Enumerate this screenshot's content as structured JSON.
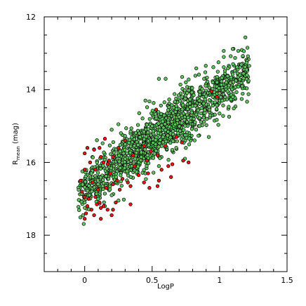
{
  "chart_data": {
    "type": "scatter",
    "title": "",
    "xlabel": "LogP",
    "ylabel": {
      "main": "R",
      "subscript": "mean",
      "unit": " (mag)"
    },
    "xlim": [
      -0.3,
      1.5
    ],
    "ylim": [
      19.0,
      12.0
    ],
    "y_inverted": true,
    "x_major_ticks": [
      0,
      0.5,
      1,
      1.5
    ],
    "x_tick_labels": [
      "0",
      "0.5",
      "1",
      "1.5"
    ],
    "y_major_ticks": [
      12,
      14,
      16,
      18
    ],
    "y_tick_labels": [
      "12",
      "14",
      "16",
      "18"
    ],
    "grid": false,
    "legend": "none",
    "colors": {
      "green": "#5fc45f",
      "red": "#ee1111",
      "outline": "#000000"
    },
    "series": [
      {
        "marker": "circle",
        "color": "green",
        "trend": {
          "slope": -2.67,
          "intercept": 16.7,
          "scatter_sd": 0.35,
          "x_range": [
            -0.05,
            1.22
          ],
          "n_points": 1400
        },
        "values": [
          {
            "x": 1.1,
            "y": 13.3
          },
          {
            "x": 1.2,
            "y": 13.45
          },
          {
            "x": 1.15,
            "y": 13.6
          },
          {
            "x": 0.55,
            "y": 13.7
          },
          {
            "x": 0.6,
            "y": 13.7
          },
          {
            "x": 0.75,
            "y": 13.8
          },
          {
            "x": 0.95,
            "y": 13.8
          },
          {
            "x": 1.05,
            "y": 13.8
          },
          {
            "x": 0.45,
            "y": 14.3
          },
          {
            "x": 0.2,
            "y": 15.1
          },
          {
            "x": 0.25,
            "y": 14.95
          },
          {
            "x": 0.5,
            "y": 15.0
          },
          {
            "x": 0.85,
            "y": 15.0
          },
          {
            "x": 0.92,
            "y": 15.3
          },
          {
            "x": 0.75,
            "y": 15.6
          },
          {
            "x": 0.58,
            "y": 15.3
          },
          {
            "x": 0.3,
            "y": 15.5
          },
          {
            "x": 0.05,
            "y": 16.3
          },
          {
            "x": -0.02,
            "y": 16.5
          },
          {
            "x": 0.1,
            "y": 16.6
          },
          {
            "x": 0.2,
            "y": 16.3
          },
          {
            "x": 0.2,
            "y": 16.9
          },
          {
            "x": 0.35,
            "y": 16.1
          },
          {
            "x": 0.4,
            "y": 16.0
          },
          {
            "x": 0.45,
            "y": 16.3
          },
          {
            "x": 0.55,
            "y": 16.1
          },
          {
            "x": 0.1,
            "y": 17.0
          },
          {
            "x": 0.15,
            "y": 17.2
          },
          {
            "x": 0.0,
            "y": 17.1
          },
          {
            "x": 0.3,
            "y": 15.9
          },
          {
            "x": 0.62,
            "y": 14.9
          },
          {
            "x": 0.7,
            "y": 14.75
          },
          {
            "x": 0.95,
            "y": 14.2
          },
          {
            "x": 1.0,
            "y": 14.1
          },
          {
            "x": 1.02,
            "y": 14.3
          },
          {
            "x": 0.85,
            "y": 14.3
          }
        ]
      },
      {
        "marker": "circle",
        "color": "red",
        "values": [
          {
            "x": 0.53,
            "y": 14.55
          },
          {
            "x": 0.94,
            "y": 14.05
          },
          {
            "x": 0.98,
            "y": 14.2
          },
          {
            "x": 0.44,
            "y": 15.55
          },
          {
            "x": 0.49,
            "y": 15.7
          },
          {
            "x": 0.54,
            "y": 15.8
          },
          {
            "x": 0.46,
            "y": 15.95
          },
          {
            "x": 0.36,
            "y": 15.8
          },
          {
            "x": 0.6,
            "y": 15.55
          },
          {
            "x": 0.68,
            "y": 15.3
          },
          {
            "x": 0.72,
            "y": 15.45
          },
          {
            "x": 0.37,
            "y": 16.1
          },
          {
            "x": 0.4,
            "y": 16.35
          },
          {
            "x": 0.47,
            "y": 16.3
          },
          {
            "x": 0.57,
            "y": 16.2
          },
          {
            "x": 0.62,
            "y": 16.1
          },
          {
            "x": 0.65,
            "y": 16.05
          },
          {
            "x": 0.73,
            "y": 15.95
          },
          {
            "x": 0.77,
            "y": 16.0
          },
          {
            "x": 0.64,
            "y": 16.4
          },
          {
            "x": 0.54,
            "y": 16.65
          },
          {
            "x": 0.48,
            "y": 16.7
          },
          {
            "x": 0.44,
            "y": 16.55
          },
          {
            "x": 0.55,
            "y": 16.5
          },
          {
            "x": 0.28,
            "y": 16.45
          },
          {
            "x": 0.32,
            "y": 16.55
          },
          {
            "x": 0.34,
            "y": 16.65
          },
          {
            "x": 0.26,
            "y": 16.75
          },
          {
            "x": 0.24,
            "y": 16.5
          },
          {
            "x": 0.21,
            "y": 16.6
          },
          {
            "x": 0.19,
            "y": 16.3
          },
          {
            "x": 0.17,
            "y": 16.05
          },
          {
            "x": 0.14,
            "y": 16.0
          },
          {
            "x": 0.12,
            "y": 15.85
          },
          {
            "x": 0.11,
            "y": 15.6
          },
          {
            "x": 0.15,
            "y": 15.35
          },
          {
            "x": 0.07,
            "y": 15.65
          },
          {
            "x": 0.02,
            "y": 15.6
          },
          {
            "x": 0.0,
            "y": 15.75
          },
          {
            "x": 0.04,
            "y": 16.0
          },
          {
            "x": 0.08,
            "y": 16.2
          },
          {
            "x": 0.0,
            "y": 16.2
          },
          {
            "x": -0.03,
            "y": 16.5
          },
          {
            "x": -0.02,
            "y": 16.8
          },
          {
            "x": 0.0,
            "y": 16.95
          },
          {
            "x": 0.03,
            "y": 17.0
          },
          {
            "x": 0.08,
            "y": 16.95
          },
          {
            "x": 0.02,
            "y": 17.2
          },
          {
            "x": 0.05,
            "y": 17.3
          },
          {
            "x": 0.01,
            "y": 17.4
          },
          {
            "x": 0.0,
            "y": 17.55
          },
          {
            "x": 0.09,
            "y": 17.15
          },
          {
            "x": 0.11,
            "y": 17.1
          },
          {
            "x": 0.12,
            "y": 17.25
          },
          {
            "x": 0.14,
            "y": 17.2
          },
          {
            "x": 0.17,
            "y": 17.3
          },
          {
            "x": 0.21,
            "y": 17.3
          },
          {
            "x": 0.23,
            "y": 17.1
          },
          {
            "x": 0.2,
            "y": 17.45
          },
          {
            "x": 0.12,
            "y": 17.55
          },
          {
            "x": 0.07,
            "y": 17.45
          },
          {
            "x": 0.34,
            "y": 17.15
          },
          {
            "x": 0.1,
            "y": 16.75
          },
          {
            "x": 0.16,
            "y": 16.7
          },
          {
            "x": 0.06,
            "y": 16.55
          },
          {
            "x": 0.21,
            "y": 15.85
          },
          {
            "x": 0.18,
            "y": 15.95
          },
          {
            "x": 0.25,
            "y": 15.6
          },
          {
            "x": 0.3,
            "y": 15.4
          }
        ]
      }
    ]
  }
}
